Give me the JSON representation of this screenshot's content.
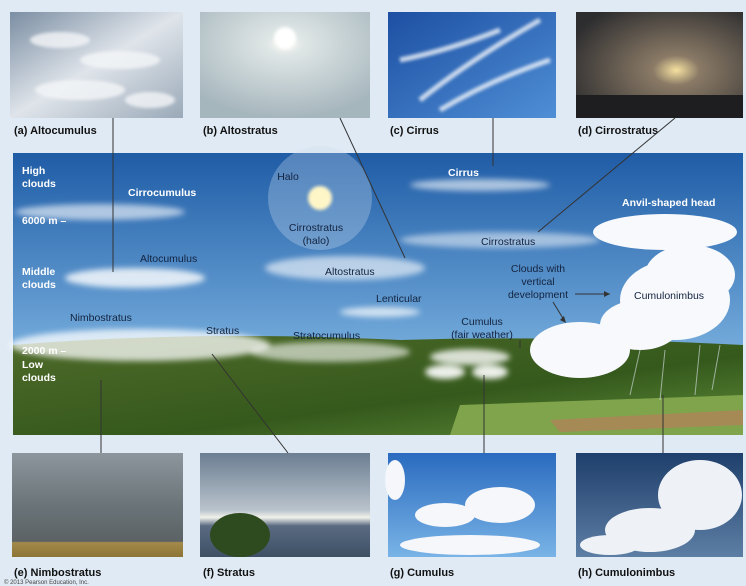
{
  "photos": [
    {
      "caption": "(a) Altocumulus"
    },
    {
      "caption": "(b) Altostratus"
    },
    {
      "caption": "(c) Cirrus"
    },
    {
      "caption": "(d) Cirrostratus"
    },
    {
      "caption": "(e) Nimbostratus"
    },
    {
      "caption": "(f) Stratus"
    },
    {
      "caption": "(g) Cumulus"
    },
    {
      "caption": "(h) Cumulonimbus"
    }
  ],
  "diagram": {
    "labels": [
      {
        "lines": [
          "High",
          "clouds"
        ]
      },
      {
        "lines": [
          "6000 m –"
        ]
      },
      {
        "lines": [
          "Middle",
          "clouds"
        ]
      },
      {
        "lines": [
          "2000 m –"
        ]
      },
      {
        "lines": [
          "Low",
          "clouds"
        ]
      },
      {
        "lines": [
          "Cirrocumulus"
        ]
      },
      {
        "lines": [
          "Altocumulus"
        ]
      },
      {
        "lines": [
          "Nimbostratus"
        ]
      },
      {
        "lines": [
          "Halo"
        ]
      },
      {
        "lines": [
          "Cirrostratus",
          "(halo)"
        ]
      },
      {
        "lines": [
          "Altostratus"
        ]
      },
      {
        "lines": [
          "Lenticular"
        ]
      },
      {
        "lines": [
          "Stratus"
        ]
      },
      {
        "lines": [
          "Stratocumulus"
        ]
      },
      {
        "lines": [
          "Cirrus"
        ]
      },
      {
        "lines": [
          "Cirrostratus"
        ]
      },
      {
        "lines": [
          "Clouds with",
          "vertical",
          "development"
        ]
      },
      {
        "lines": [
          "Cumulus",
          "(fair weather)"
        ]
      },
      {
        "lines": [
          "Anvil-shaped head"
        ]
      },
      {
        "lines": [
          "Cumulonimbus"
        ]
      }
    ]
  },
  "copyright": "© 2013 Pearson Education, Inc."
}
